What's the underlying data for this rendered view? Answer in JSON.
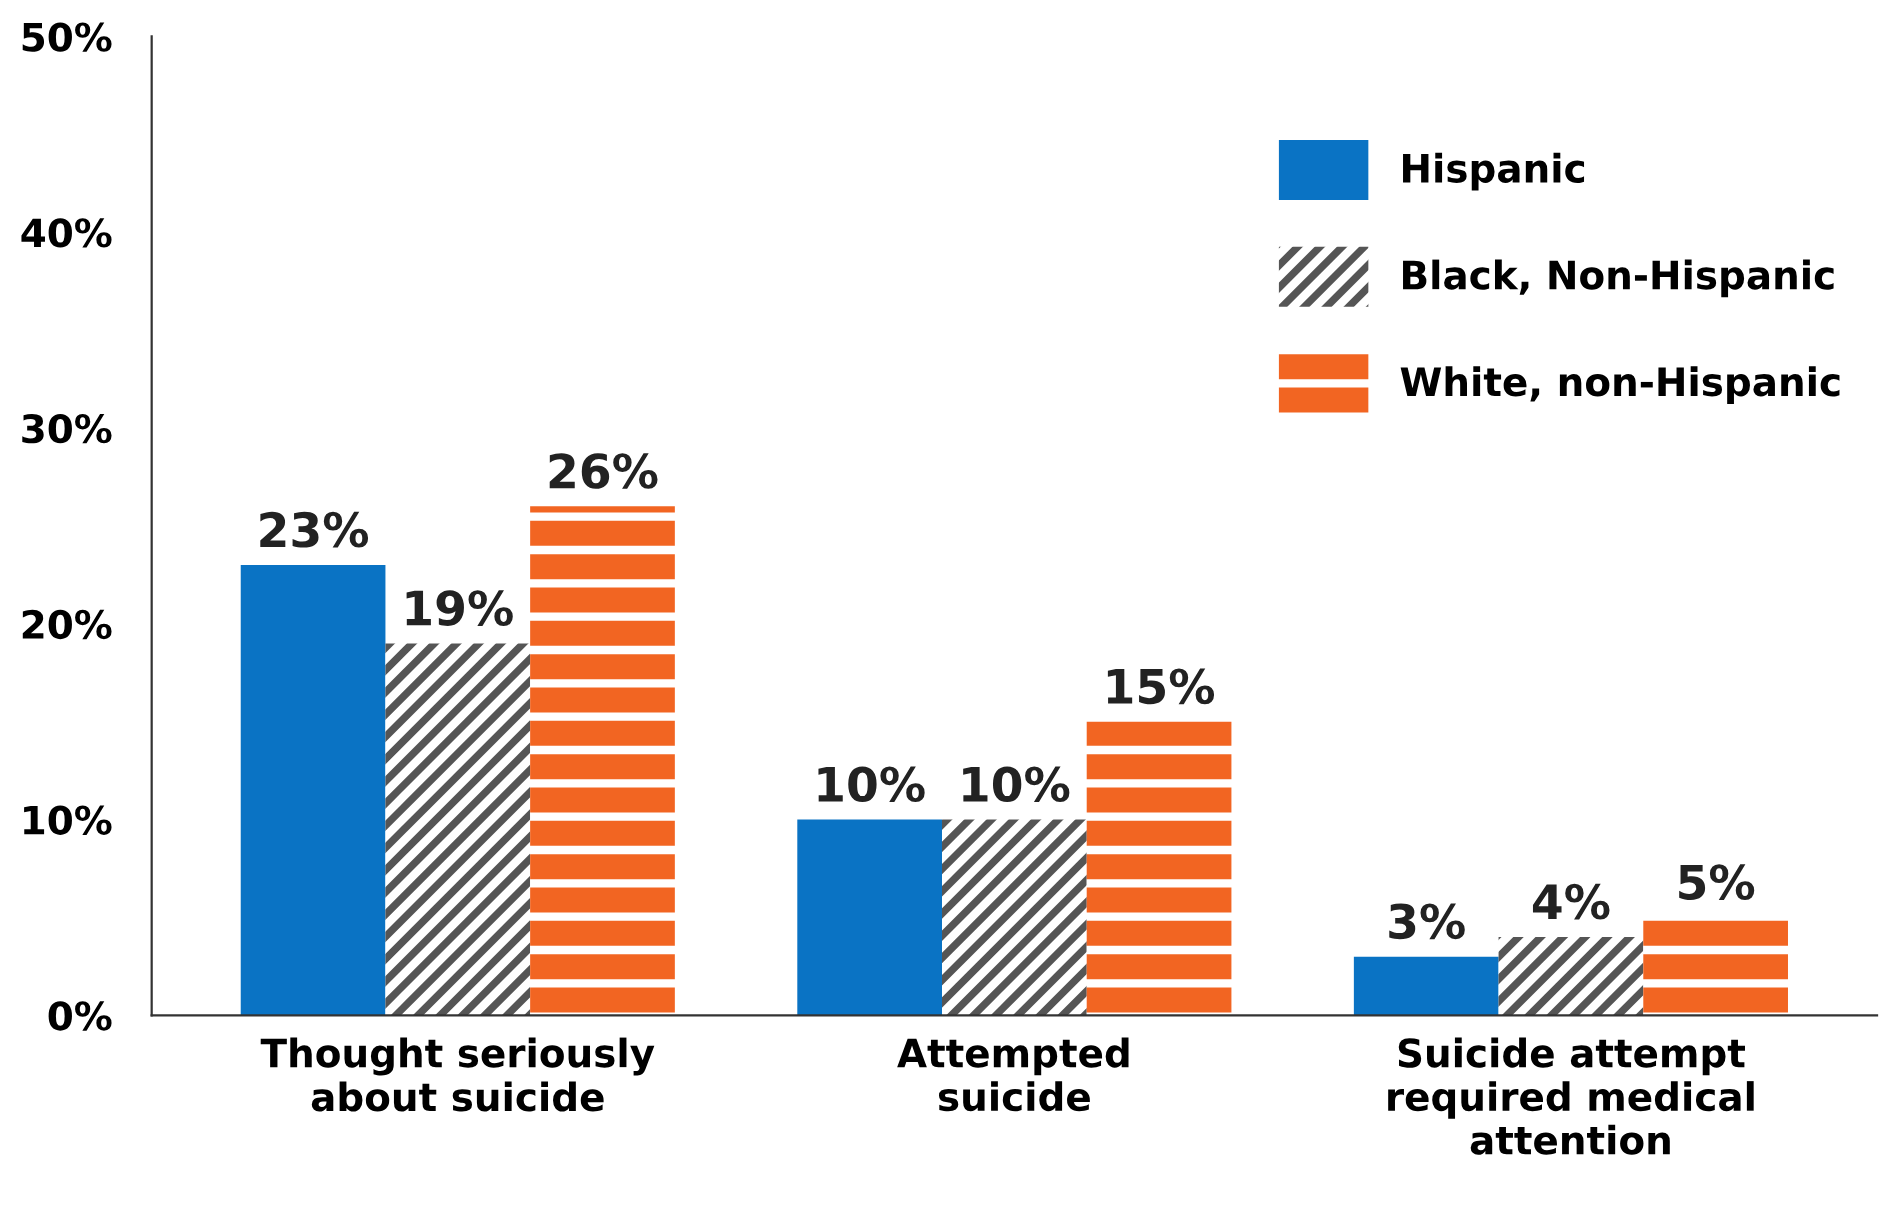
{
  "chart_data": {
    "type": "bar",
    "categories": [
      "Thought seriously\nabout suicide",
      "Attempted\nsuicide",
      "Suicide attempt\nrequired medical\nattention"
    ],
    "series": [
      {
        "name": "Hispanic",
        "color": "#0a73c4",
        "values": [
          23,
          10,
          3
        ],
        "value_labels": [
          "23%",
          "10%",
          "3%"
        ]
      },
      {
        "name": "Black, Non-Hispanic",
        "color": "#555555",
        "values": [
          19,
          10,
          4
        ],
        "value_labels": [
          "19%",
          "10%",
          "4%"
        ]
      },
      {
        "name": "White, non-Hispanic",
        "color": "#f26522",
        "values": [
          26,
          15,
          5
        ],
        "value_labels": [
          "26%",
          "15%",
          "5%"
        ]
      }
    ],
    "ylim": [
      0,
      50
    ],
    "yticks": [
      {
        "value": 0,
        "label": "0%"
      },
      {
        "value": 10,
        "label": "10%"
      },
      {
        "value": 20,
        "label": "20%"
      },
      {
        "value": 30,
        "label": "30%"
      },
      {
        "value": 40,
        "label": "40%"
      },
      {
        "value": 50,
        "label": "50%"
      }
    ],
    "grid": false,
    "legend": "top right"
  }
}
